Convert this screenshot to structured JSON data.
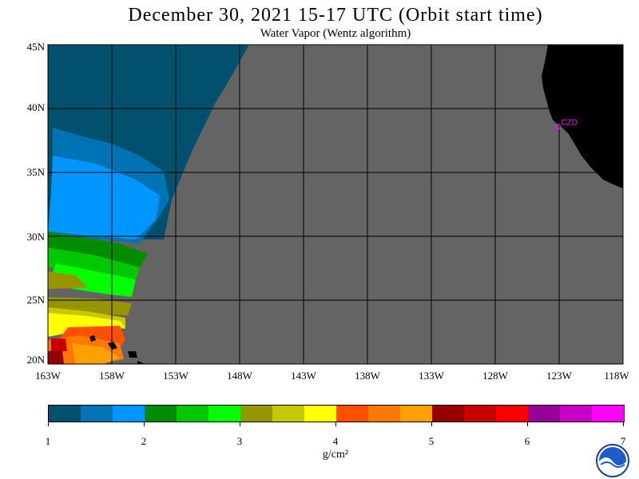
{
  "header": {
    "title": "December 30, 2021  15-17 UTC  (Orbit start time)",
    "subtitle": "Water Vapor (Wentz algorithm)"
  },
  "map": {
    "lon_range": [
      -163,
      -118
    ],
    "lat_range": [
      20,
      45
    ],
    "lat_labels": [
      "45N",
      "40N",
      "35N",
      "30N",
      "25N",
      "20N"
    ],
    "lon_labels": [
      "163W",
      "158W",
      "153W",
      "148W",
      "143W",
      "138W",
      "133W",
      "128W",
      "123W",
      "118W"
    ],
    "station": {
      "label": "CZD",
      "lon": -123.1,
      "lat": 38.6,
      "color": "#ff00ff"
    },
    "no_data_color": "#646464",
    "land_color": "#000000",
    "grid": true
  },
  "colorbar": {
    "colors": [
      "#00506e",
      "#0073b4",
      "#0096ff",
      "#008c00",
      "#00c800",
      "#00ff00",
      "#969600",
      "#c8c800",
      "#ffff00",
      "#ff5000",
      "#ff7800",
      "#ffa000",
      "#960000",
      "#c80000",
      "#ff0000",
      "#960096",
      "#c800c8",
      "#ff00ff"
    ],
    "ticks": [
      "1",
      "2",
      "3",
      "4",
      "5",
      "6",
      "7"
    ],
    "unit": "g/cm²"
  }
}
